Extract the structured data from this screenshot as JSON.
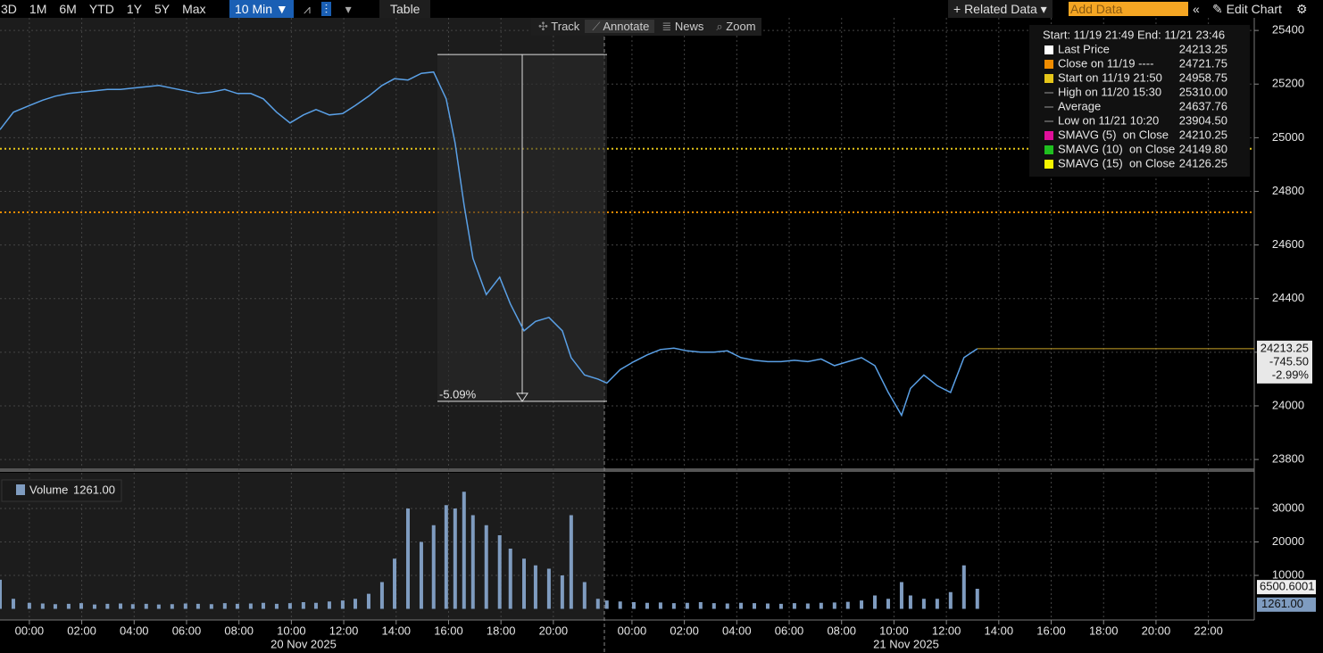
{
  "toolbar": {
    "ranges": [
      "3D",
      "1M",
      "6M",
      "YTD",
      "1Y",
      "5Y",
      "Max"
    ],
    "interval": "10 Min ▼",
    "table": "Table",
    "related": "+ Related Data ▾",
    "add_data": "Add Data",
    "edit": "Edit Chart",
    "tools": [
      "Track",
      "Annotate",
      "News",
      "Zoom"
    ]
  },
  "chart_data": {
    "type": "line",
    "legend_header": "Start: 11/19 21:49 End: 11/21 23:46",
    "legend": [
      {
        "name": "Last Price",
        "color": "#ffffff",
        "value": 24213.25,
        "value_label": "24213.25",
        "line": "solid",
        "line_color": "#c9a227"
      },
      {
        "name": "Close on 11/19 ----",
        "color": "#f08c00",
        "value": 24721.75,
        "value_label": "24721.75",
        "line": "dotted",
        "line_color": "#f08c00"
      },
      {
        "name": "Start on 11/19 21:50",
        "color": "#e6c619",
        "value": 24958.75,
        "value_label": "24958.75",
        "line": "dotted",
        "line_color": "#e6c619"
      },
      {
        "name": "High on 11/20 15:30",
        "value": 25310,
        "value_label": "25310.00"
      },
      {
        "name": "Average",
        "value": 24637.76,
        "value_label": "24637.76"
      },
      {
        "name": "Low on 11/21 10:20",
        "value": 23904.5,
        "value_label": "23904.50"
      },
      {
        "name": "SMAVG (5)  on Close",
        "color": "#e0109a",
        "value": 24210.25,
        "value_label": "24210.25"
      },
      {
        "name": "SMAVG (10)  on Close",
        "color": "#1fbf1f",
        "value": 24149.8,
        "value_label": "24149.80"
      },
      {
        "name": "SMAVG (15)  on Close",
        "color": "#f5f500",
        "value": 24126.25,
        "value_label": "24126.25"
      }
    ],
    "x": [
      -1.12,
      -0.61,
      0,
      0.51,
      0.99,
      1.5,
      1.98,
      2.49,
      2.98,
      3.48,
      3.95,
      4.46,
      4.94,
      5.45,
      5.96,
      6.44,
      6.95,
      7.46,
      7.94,
      8.45,
      8.93,
      9.44,
      9.95,
      10.46,
      10.94,
      11.45,
      11.96,
      12.44,
      12.95,
      13.46,
      13.94,
      14.45,
      14.96,
      15.43,
      15.91,
      16.25,
      16.59,
      16.93,
      17.44,
      17.95,
      18.36,
      18.88,
      19.32,
      19.83,
      20.34,
      20.68,
      21.19,
      21.7,
      22.04,
      22.55,
      23.07,
      23.58,
      24.09,
      24.6,
      25.11,
      25.62,
      26.13,
      26.64,
      27.16,
      27.67,
      28.18,
      28.69,
      29.2,
      29.71,
      30.22,
      30.73,
      31.24,
      31.76,
      32.27,
      32.78,
      33.29,
      33.63,
      34.14,
      34.65,
      35.16,
      35.67,
      36.18
    ],
    "series": [
      {
        "name": "Last Price",
        "color": "#5aa0e6",
        "values": [
          25030,
          25095,
          25120,
          25140,
          25155,
          25165,
          25170,
          25175,
          25180,
          25180,
          25185,
          25190,
          25195,
          25185,
          25175,
          25165,
          25170,
          25180,
          25165,
          25165,
          25145,
          25095,
          25055,
          25085,
          25105,
          25085,
          25090,
          25120,
          25155,
          25195,
          25220,
          25215,
          25240,
          25245,
          25145,
          24980,
          24750,
          24550,
          24415,
          24480,
          24380,
          24280,
          24315,
          24330,
          24280,
          24180,
          24115,
          24100,
          24085,
          24135,
          24165,
          24190,
          24210,
          24215,
          24205,
          24200,
          24200,
          24205,
          24180,
          24170,
          24165,
          24165,
          24170,
          24165,
          24175,
          24150,
          24165,
          24180,
          24150,
          24050,
          23965,
          24065,
          24115,
          24075,
          24050,
          24180,
          24213.25
        ]
      }
    ],
    "xlim": [
      -1.12,
      46.75
    ],
    "xticks": [
      {
        "value": 0,
        "label": "00:00"
      },
      {
        "value": 2,
        "label": "02:00"
      },
      {
        "value": 4,
        "label": "04:00"
      },
      {
        "value": 6,
        "label": "06:00"
      },
      {
        "value": 8,
        "label": "08:00"
      },
      {
        "value": 10,
        "label": "10:00"
      },
      {
        "value": 12,
        "label": "12:00"
      },
      {
        "value": 14,
        "label": "14:00"
      },
      {
        "value": 16,
        "label": "16:00"
      },
      {
        "value": 18,
        "label": "18:00"
      },
      {
        "value": 20,
        "label": "20:00"
      },
      {
        "value": 23,
        "label": "00:00"
      },
      {
        "value": 25,
        "label": "02:00"
      },
      {
        "value": 27,
        "label": "04:00"
      },
      {
        "value": 29,
        "label": "06:00"
      },
      {
        "value": 31,
        "label": "08:00"
      },
      {
        "value": 33,
        "label": "10:00"
      },
      {
        "value": 35,
        "label": "12:00"
      },
      {
        "value": 37,
        "label": "14:00"
      },
      {
        "value": 39,
        "label": "16:00"
      },
      {
        "value": 41,
        "label": "18:00"
      },
      {
        "value": 43,
        "label": "20:00"
      },
      {
        "value": 45,
        "label": "22:00"
      }
    ],
    "dates": [
      "20 Nov 2025",
      "21 Nov 2025"
    ],
    "ylim": [
      23767,
      25447
    ],
    "yticks": [
      23800,
      24000,
      24200,
      24400,
      24600,
      24800,
      25000,
      25200,
      25400
    ],
    "grid": true,
    "price_tag": [
      "24213.25",
      "-745.50",
      "-2.99%"
    ],
    "annotation": {
      "label": "-5.09%",
      "from": 25310,
      "to": 24017
    },
    "volume": {
      "type": "bar",
      "name": "Volume",
      "color": "#7f9cc0",
      "last": {
        "value": 1261,
        "label": "1261.00"
      },
      "ma_value": 6500.6001,
      "values": [
        8700,
        3000,
        1800,
        1600,
        1400,
        1500,
        1700,
        1300,
        1500,
        1600,
        1400,
        1500,
        1300,
        1400,
        1600,
        1500,
        1400,
        1700,
        1500,
        1600,
        1800,
        1500,
        1700,
        2000,
        1800,
        2200,
        2500,
        3000,
        4500,
        8000,
        15000,
        30000,
        20000,
        25000,
        31000,
        30000,
        35000,
        28000,
        25000,
        22000,
        18000,
        15000,
        13000,
        12000,
        10000,
        28000,
        8000,
        3000,
        2500,
        2200,
        2000,
        1800,
        1900,
        1700,
        1800,
        2000,
        1700,
        1600,
        1800,
        1700,
        1600,
        1500,
        1700,
        1600,
        1800,
        1900,
        2100,
        2500,
        4000,
        3000,
        8000,
        4000,
        3000,
        3000,
        5000,
        13000,
        6000
      ],
      "ylim": [
        -3333,
        40667
      ],
      "yticks": [
        10000,
        20000,
        30000
      ]
    }
  }
}
